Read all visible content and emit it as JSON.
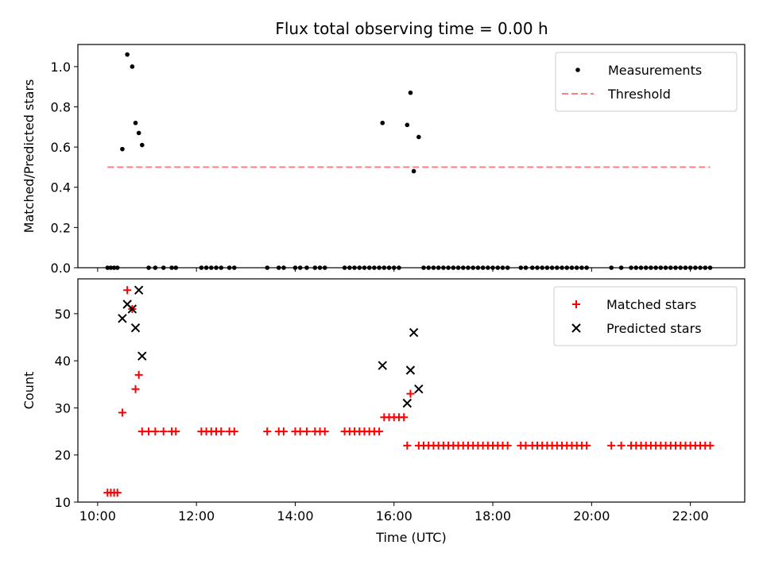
{
  "chart_data": [
    {
      "type": "scatter",
      "title": "Flux total observing time = 0.00 h",
      "xlabel": "",
      "ylabel": "Matched/Predicted stars",
      "xlim": [
        "09:36",
        "23:06"
      ],
      "ylim": [
        0,
        1.11
      ],
      "xticks": [
        "10:00",
        "12:00",
        "14:00",
        "16:00",
        "18:00",
        "20:00",
        "22:00"
      ],
      "yticks": [
        "0.0",
        "0.2",
        "0.4",
        "0.6",
        "0.8",
        "1.0"
      ],
      "legend_position": "top-right",
      "series": [
        {
          "name": "Measurements",
          "marker": "dot",
          "color": "#000000",
          "points": [
            [
              "10:30",
              0.59
            ],
            [
              "10:36",
              1.06
            ],
            [
              "10:42",
              1.0
            ],
            [
              "10:46",
              0.72
            ],
            [
              "10:50",
              0.67
            ],
            [
              "10:54",
              0.61
            ],
            [
              "15:46",
              0.72
            ],
            [
              "16:16",
              0.71
            ],
            [
              "16:20",
              0.87
            ],
            [
              "16:24",
              0.48
            ],
            [
              "16:30",
              0.65
            ],
            [
              "10:12",
              0
            ],
            [
              "10:16",
              0
            ],
            [
              "10:20",
              0
            ],
            [
              "10:24",
              0
            ],
            [
              "11:02",
              0
            ],
            [
              "11:10",
              0
            ],
            [
              "11:20",
              0
            ],
            [
              "11:30",
              0
            ],
            [
              "11:35",
              0
            ],
            [
              "12:06",
              0
            ],
            [
              "12:12",
              0
            ],
            [
              "12:18",
              0
            ],
            [
              "12:24",
              0
            ],
            [
              "12:30",
              0
            ],
            [
              "12:40",
              0
            ],
            [
              "12:46",
              0
            ],
            [
              "13:26",
              0
            ],
            [
              "13:40",
              0
            ],
            [
              "13:46",
              0
            ],
            [
              "14:00",
              0
            ],
            [
              "14:06",
              0
            ],
            [
              "14:14",
              0
            ],
            [
              "14:24",
              0
            ],
            [
              "14:30",
              0
            ],
            [
              "14:36",
              0
            ],
            [
              "15:00",
              0
            ],
            [
              "15:06",
              0
            ],
            [
              "15:12",
              0
            ],
            [
              "15:18",
              0
            ],
            [
              "15:24",
              0
            ],
            [
              "15:30",
              0
            ],
            [
              "15:36",
              0
            ],
            [
              "15:42",
              0
            ],
            [
              "15:48",
              0
            ],
            [
              "15:54",
              0
            ],
            [
              "16:00",
              0
            ],
            [
              "16:06",
              0
            ],
            [
              "16:36",
              0
            ],
            [
              "16:42",
              0
            ],
            [
              "16:48",
              0
            ],
            [
              "16:54",
              0
            ],
            [
              "17:00",
              0
            ],
            [
              "17:06",
              0
            ],
            [
              "17:12",
              0
            ],
            [
              "17:18",
              0
            ],
            [
              "17:24",
              0
            ],
            [
              "17:30",
              0
            ],
            [
              "17:36",
              0
            ],
            [
              "17:42",
              0
            ],
            [
              "17:48",
              0
            ],
            [
              "17:54",
              0
            ],
            [
              "18:00",
              0
            ],
            [
              "18:06",
              0
            ],
            [
              "18:12",
              0
            ],
            [
              "18:18",
              0
            ],
            [
              "18:34",
              0
            ],
            [
              "18:40",
              0
            ],
            [
              "18:48",
              0
            ],
            [
              "18:54",
              0
            ],
            [
              "19:00",
              0
            ],
            [
              "19:06",
              0
            ],
            [
              "19:12",
              0
            ],
            [
              "19:18",
              0
            ],
            [
              "19:24",
              0
            ],
            [
              "19:30",
              0
            ],
            [
              "19:36",
              0
            ],
            [
              "19:42",
              0
            ],
            [
              "19:48",
              0
            ],
            [
              "19:54",
              0
            ],
            [
              "20:24",
              0
            ],
            [
              "20:36",
              0
            ],
            [
              "20:48",
              0
            ],
            [
              "20:54",
              0
            ],
            [
              "21:00",
              0
            ],
            [
              "21:06",
              0
            ],
            [
              "21:12",
              0
            ],
            [
              "21:18",
              0
            ],
            [
              "21:24",
              0
            ],
            [
              "21:30",
              0
            ],
            [
              "21:36",
              0
            ],
            [
              "21:42",
              0
            ],
            [
              "21:48",
              0
            ],
            [
              "21:54",
              0
            ],
            [
              "22:00",
              0
            ],
            [
              "22:06",
              0
            ],
            [
              "22:12",
              0
            ],
            [
              "22:18",
              0
            ],
            [
              "22:24",
              0
            ]
          ]
        },
        {
          "name": "Threshold",
          "marker": "dashed-line",
          "color": "#ff7f7f",
          "points": [
            [
              "10:12",
              0.5
            ],
            [
              "22:24",
              0.5
            ]
          ]
        }
      ]
    },
    {
      "type": "scatter",
      "title": "",
      "xlabel": "Time (UTC)",
      "ylabel": "Count",
      "xlim": [
        "09:36",
        "23:06"
      ],
      "ylim": [
        10,
        57.4
      ],
      "xticks": [
        "10:00",
        "12:00",
        "14:00",
        "16:00",
        "18:00",
        "20:00",
        "22:00"
      ],
      "yticks": [
        "10",
        "20",
        "30",
        "40",
        "50"
      ],
      "legend_position": "top-right",
      "series": [
        {
          "name": "Matched stars",
          "marker": "plus",
          "color": "#ff0000",
          "points": [
            [
              "10:12",
              12
            ],
            [
              "10:16",
              12
            ],
            [
              "10:20",
              12
            ],
            [
              "10:24",
              12
            ],
            [
              "10:30",
              29
            ],
            [
              "10:36",
              55
            ],
            [
              "10:42",
              51
            ],
            [
              "10:46",
              34
            ],
            [
              "10:50",
              37
            ],
            [
              "10:54",
              25
            ],
            [
              "11:02",
              25
            ],
            [
              "11:10",
              25
            ],
            [
              "11:20",
              25
            ],
            [
              "11:30",
              25
            ],
            [
              "11:35",
              25
            ],
            [
              "12:06",
              25
            ],
            [
              "12:12",
              25
            ],
            [
              "12:18",
              25
            ],
            [
              "12:24",
              25
            ],
            [
              "12:30",
              25
            ],
            [
              "12:40",
              25
            ],
            [
              "12:46",
              25
            ],
            [
              "13:26",
              25
            ],
            [
              "13:40",
              25
            ],
            [
              "13:46",
              25
            ],
            [
              "14:00",
              25
            ],
            [
              "14:06",
              25
            ],
            [
              "14:14",
              25
            ],
            [
              "14:24",
              25
            ],
            [
              "14:30",
              25
            ],
            [
              "14:36",
              25
            ],
            [
              "15:00",
              25
            ],
            [
              "15:06",
              25
            ],
            [
              "15:12",
              25
            ],
            [
              "15:18",
              25
            ],
            [
              "15:24",
              25
            ],
            [
              "15:30",
              25
            ],
            [
              "15:36",
              25
            ],
            [
              "15:42",
              25
            ],
            [
              "15:48",
              28
            ],
            [
              "15:54",
              28
            ],
            [
              "16:00",
              28
            ],
            [
              "16:06",
              28
            ],
            [
              "16:12",
              28
            ],
            [
              "16:20",
              33
            ],
            [
              "16:16",
              22
            ],
            [
              "16:30",
              22
            ],
            [
              "16:36",
              22
            ],
            [
              "16:42",
              22
            ],
            [
              "16:48",
              22
            ],
            [
              "16:54",
              22
            ],
            [
              "17:00",
              22
            ],
            [
              "17:06",
              22
            ],
            [
              "17:12",
              22
            ],
            [
              "17:18",
              22
            ],
            [
              "17:24",
              22
            ],
            [
              "17:30",
              22
            ],
            [
              "17:36",
              22
            ],
            [
              "17:42",
              22
            ],
            [
              "17:48",
              22
            ],
            [
              "17:54",
              22
            ],
            [
              "18:00",
              22
            ],
            [
              "18:06",
              22
            ],
            [
              "18:12",
              22
            ],
            [
              "18:18",
              22
            ],
            [
              "18:34",
              22
            ],
            [
              "18:40",
              22
            ],
            [
              "18:48",
              22
            ],
            [
              "18:54",
              22
            ],
            [
              "19:00",
              22
            ],
            [
              "19:06",
              22
            ],
            [
              "19:12",
              22
            ],
            [
              "19:18",
              22
            ],
            [
              "19:24",
              22
            ],
            [
              "19:30",
              22
            ],
            [
              "19:36",
              22
            ],
            [
              "19:42",
              22
            ],
            [
              "19:48",
              22
            ],
            [
              "19:54",
              22
            ],
            [
              "20:24",
              22
            ],
            [
              "20:36",
              22
            ],
            [
              "20:48",
              22
            ],
            [
              "20:54",
              22
            ],
            [
              "21:00",
              22
            ],
            [
              "21:06",
              22
            ],
            [
              "21:12",
              22
            ],
            [
              "21:18",
              22
            ],
            [
              "21:24",
              22
            ],
            [
              "21:30",
              22
            ],
            [
              "21:36",
              22
            ],
            [
              "21:42",
              22
            ],
            [
              "21:48",
              22
            ],
            [
              "21:54",
              22
            ],
            [
              "22:00",
              22
            ],
            [
              "22:06",
              22
            ],
            [
              "22:12",
              22
            ],
            [
              "22:18",
              22
            ],
            [
              "22:24",
              22
            ]
          ]
        },
        {
          "name": "Predicted stars",
          "marker": "x",
          "color": "#000000",
          "points": [
            [
              "10:30",
              49
            ],
            [
              "10:36",
              52
            ],
            [
              "10:42",
              51
            ],
            [
              "10:46",
              47
            ],
            [
              "10:50",
              55
            ],
            [
              "10:54",
              41
            ],
            [
              "15:46",
              39
            ],
            [
              "16:16",
              31
            ],
            [
              "16:20",
              38
            ],
            [
              "16:24",
              46
            ],
            [
              "16:30",
              34
            ]
          ]
        }
      ]
    }
  ]
}
